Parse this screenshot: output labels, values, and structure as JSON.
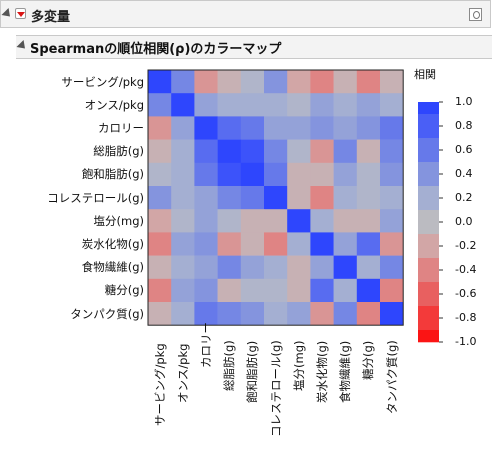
{
  "header": {
    "title": "多変量"
  },
  "section": {
    "title": "Spearmanの順位相関(ρ)のカラーマップ"
  },
  "variables": [
    "サービング/pkg",
    "オンス/pkg",
    "カロリー",
    "総脂肪(g)",
    "飽和脂肪(g)",
    "コレステロール(g)",
    "塩分(mg)",
    "炭水化物(g)",
    "食物繊維(g)",
    "糖分(g)",
    "タンパク質(g)"
  ],
  "legend": {
    "title": "相関",
    "labels": [
      "1.0",
      "0.8",
      "0.6",
      "0.4",
      "0.2",
      "0.0",
      "-0.2",
      "-0.4",
      "-0.6",
      "-0.8",
      "-1.0"
    ],
    "colors": [
      "#2e46fd",
      "#4a5ff6",
      "#6679ea",
      "#8494de",
      "#a4afd2",
      "#bbbbc1",
      "#d2a6a6",
      "#df8484",
      "#e86060",
      "#f33a3a",
      "#fb1414"
    ]
  },
  "chart_data": {
    "type": "heatmap",
    "xlabel": "",
    "ylabel": "",
    "vmin": -1.0,
    "vmax": 1.0,
    "categories": [
      "サービング/pkg",
      "オンス/pkg",
      "カロリー",
      "総脂肪(g)",
      "飽和脂肪(g)",
      "コレステロール(g)",
      "塩分(mg)",
      "炭水化物(g)",
      "食物繊維(g)",
      "糖分(g)",
      "タンパク質(g)"
    ],
    "matrix": [
      [
        1.0,
        0.5,
        -0.3,
        -0.1,
        0.1,
        0.4,
        -0.2,
        -0.4,
        -0.1,
        -0.4,
        -0.1
      ],
      [
        0.5,
        1.0,
        0.3,
        0.2,
        0.2,
        0.2,
        0.1,
        0.3,
        0.2,
        0.3,
        0.2
      ],
      [
        -0.3,
        0.3,
        1.0,
        0.7,
        0.6,
        0.3,
        0.3,
        0.4,
        0.3,
        0.4,
        0.6
      ],
      [
        -0.1,
        0.2,
        0.7,
        1.0,
        0.9,
        0.5,
        0.1,
        -0.3,
        0.5,
        -0.1,
        0.5
      ],
      [
        0.1,
        0.2,
        0.6,
        0.9,
        1.0,
        0.6,
        -0.1,
        -0.1,
        0.3,
        0.1,
        0.4
      ],
      [
        0.4,
        0.2,
        0.3,
        0.5,
        0.6,
        1.0,
        -0.1,
        -0.4,
        0.2,
        0.1,
        0.2
      ],
      [
        -0.2,
        0.1,
        0.3,
        0.1,
        -0.1,
        -0.1,
        1.0,
        0.2,
        -0.1,
        -0.1,
        0.3
      ],
      [
        -0.4,
        0.3,
        0.4,
        -0.3,
        -0.1,
        -0.4,
        0.2,
        1.0,
        0.3,
        0.7,
        -0.3
      ],
      [
        -0.1,
        0.2,
        0.3,
        0.5,
        0.3,
        0.2,
        -0.1,
        0.3,
        1.0,
        0.2,
        0.5
      ],
      [
        -0.4,
        0.3,
        0.4,
        -0.1,
        0.1,
        0.1,
        -0.1,
        0.7,
        0.2,
        1.0,
        -0.4
      ],
      [
        -0.1,
        0.2,
        0.6,
        0.5,
        0.4,
        0.2,
        0.3,
        -0.3,
        0.5,
        -0.4,
        1.0
      ]
    ]
  }
}
